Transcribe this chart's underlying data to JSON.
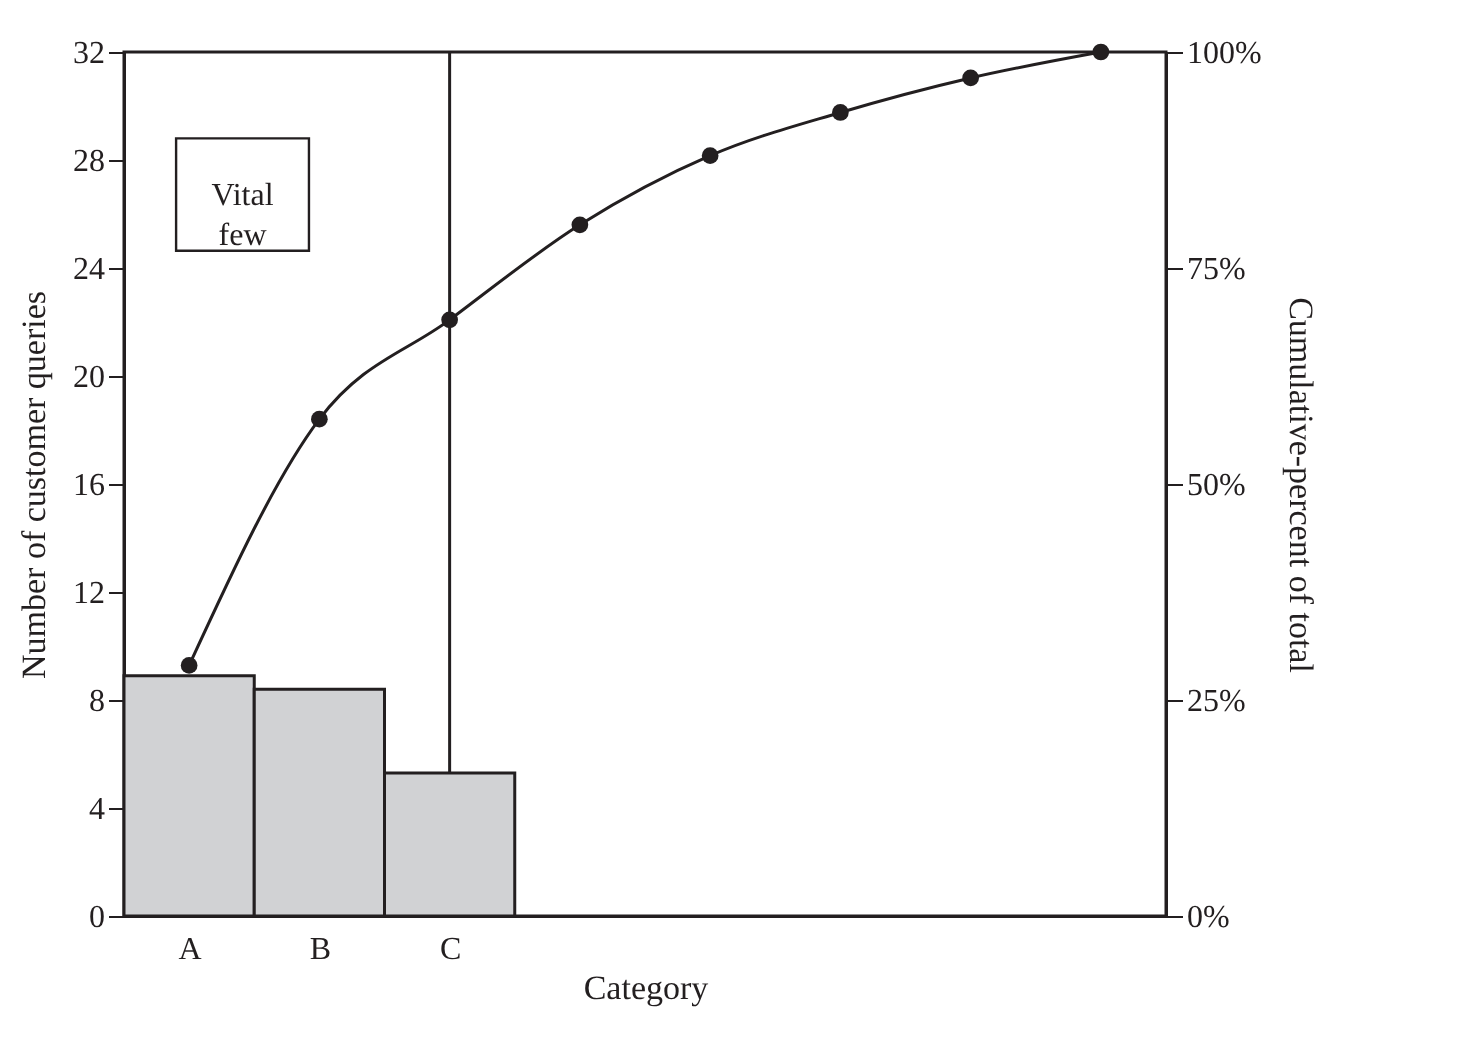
{
  "chart_data": {
    "type": "bar",
    "xlabel": "Category",
    "ylabel": "Number of customer queries",
    "y2label": "Cumulative-percent of total",
    "annotations": [
      "Vital few"
    ],
    "categories": [
      "A",
      "B",
      "C",
      null,
      null,
      null,
      null,
      null
    ],
    "ylim": [
      0,
      32
    ],
    "yticks": [
      0,
      4,
      8,
      12,
      16,
      20,
      24,
      28,
      32
    ],
    "y2lim": [
      0,
      100
    ],
    "y2ticks": [
      {
        "value": 0,
        "label": "0%"
      },
      {
        "value": 25,
        "label": "25%"
      },
      {
        "value": 50,
        "label": "50%"
      },
      {
        "value": 75,
        "label": "75%"
      },
      {
        "value": 100,
        "label": "100%"
      }
    ],
    "series": [
      {
        "color": "#d1d2d4",
        "values": [
          8.9,
          8.4,
          5.3,
          null,
          null,
          null,
          null,
          null
        ]
      },
      {
        "type": "line",
        "axis": "y2",
        "color": "#231f20",
        "values": [
          29,
          57.5,
          69,
          80,
          88,
          93,
          97,
          100
        ]
      }
    ],
    "ref_lines": [
      {
        "axis": "x",
        "value": "C",
        "color": "#231f20"
      }
    ],
    "marker": "circle",
    "line_style": "solid",
    "grid": false
  }
}
